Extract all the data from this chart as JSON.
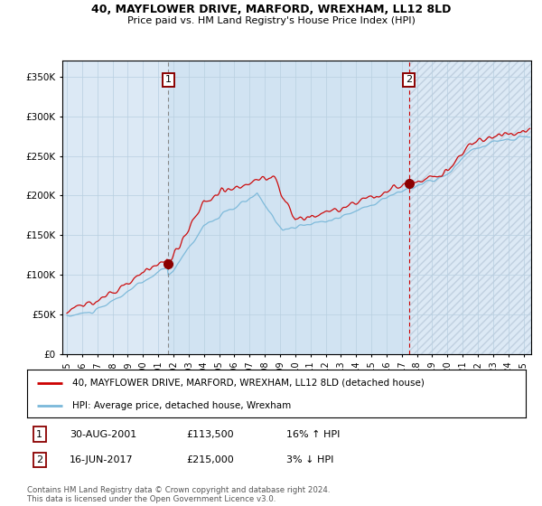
{
  "title1": "40, MAYFLOWER DRIVE, MARFORD, WREXHAM, LL12 8LD",
  "title2": "Price paid vs. HM Land Registry's House Price Index (HPI)",
  "legend_line1": "40, MAYFLOWER DRIVE, MARFORD, WREXHAM, LL12 8LD (detached house)",
  "legend_line2": "HPI: Average price, detached house, Wrexham",
  "annotation1_date": "30-AUG-2001",
  "annotation1_price": "£113,500",
  "annotation1_hpi": "16% ↑ HPI",
  "annotation2_date": "16-JUN-2017",
  "annotation2_price": "£215,000",
  "annotation2_hpi": "3% ↓ HPI",
  "footer": "Contains HM Land Registry data © Crown copyright and database right 2024.\nThis data is licensed under the Open Government Licence v3.0.",
  "sale1_year": 2001.66,
  "sale1_price": 113500,
  "sale2_year": 2017.46,
  "sale2_price": 215000,
  "hpi_color": "#7ab8d9",
  "price_color": "#cc0000",
  "bg_color": "#dce9f5",
  "grid_color": "#b8cfe0",
  "ylim": [
    0,
    370000
  ],
  "xlim_start": 1994.7,
  "xlim_end": 2025.5
}
